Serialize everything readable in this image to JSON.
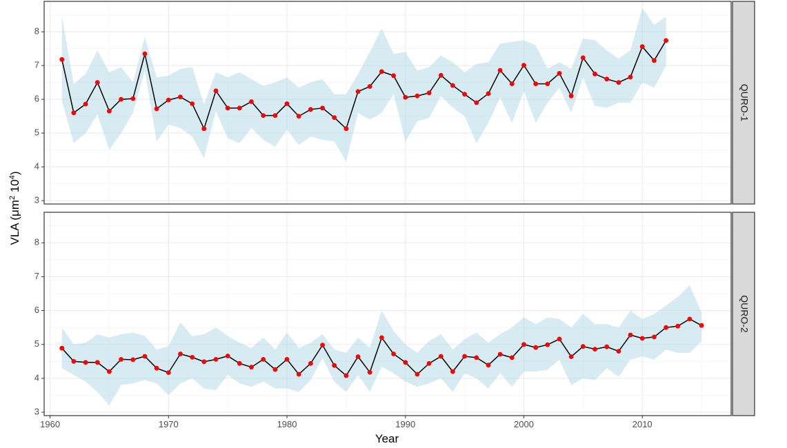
{
  "chart_data": {
    "type": "line",
    "xlabel": "Year",
    "ylabel": "VLA (μm² 10⁴)",
    "ylabel_parts": {
      "base": "VLA (μm",
      "exp1": "2",
      "mid": " 10",
      "exp2": "4",
      "end": ")"
    },
    "xlim": [
      1959.5,
      2017.5
    ],
    "ylim": [
      2.9,
      8.9
    ],
    "x_ticks": [
      1960,
      1970,
      1980,
      1990,
      2000,
      2010
    ],
    "x_tick_labels": [
      "1960",
      "1970",
      "1980",
      "1990",
      "2000",
      "2010"
    ],
    "y_ticks": [
      3,
      4,
      5,
      6,
      7,
      8
    ],
    "y_tick_labels": [
      "3",
      "4",
      "5",
      "6",
      "7",
      "8"
    ],
    "grid": true,
    "colors": {
      "line": "#000000",
      "point": "#ff0000",
      "ribbon": "#add8e6",
      "strip": "#d9d9d9"
    },
    "panels": [
      {
        "strip_label": "QURO-1",
        "x": [
          1961,
          1962,
          1963,
          1964,
          1965,
          1966,
          1967,
          1968,
          1969,
          1970,
          1971,
          1972,
          1973,
          1974,
          1975,
          1976,
          1977,
          1978,
          1979,
          1980,
          1981,
          1982,
          1983,
          1984,
          1985,
          1986,
          1987,
          1988,
          1989,
          1990,
          1991,
          1992,
          1993,
          1994,
          1995,
          1996,
          1997,
          1998,
          1999,
          2000,
          2001,
          2002,
          2003,
          2004,
          2005,
          2006,
          2007,
          2008,
          2009,
          2010,
          2011,
          2012
        ],
        "y": [
          7.18,
          5.6,
          5.86,
          6.5,
          5.65,
          6.0,
          6.02,
          7.35,
          5.72,
          5.98,
          6.07,
          5.87,
          5.13,
          6.25,
          5.74,
          5.74,
          5.93,
          5.52,
          5.52,
          5.87,
          5.5,
          5.7,
          5.74,
          5.46,
          5.13,
          6.23,
          6.38,
          6.82,
          6.7,
          6.06,
          6.1,
          6.19,
          6.71,
          6.41,
          6.15,
          5.9,
          6.17,
          6.86,
          6.46,
          7.01,
          6.46,
          6.46,
          6.77,
          6.1,
          7.23,
          6.75,
          6.6,
          6.5,
          6.66,
          7.56,
          7.15,
          7.74
        ],
        "upper": [
          8.45,
          6.45,
          6.75,
          7.45,
          6.8,
          6.95,
          6.5,
          7.85,
          6.65,
          6.7,
          6.9,
          6.95,
          5.85,
          6.8,
          6.65,
          6.8,
          6.6,
          6.4,
          6.5,
          6.65,
          6.35,
          6.5,
          6.6,
          6.15,
          6.15,
          6.75,
          7.4,
          8.1,
          7.35,
          7.4,
          6.85,
          6.95,
          7.3,
          7.1,
          6.8,
          7.05,
          7.1,
          7.65,
          7.7,
          7.75,
          7.6,
          6.9,
          7.1,
          6.9,
          7.8,
          7.75,
          7.45,
          7.2,
          7.45,
          8.7,
          8.2,
          8.45
        ],
        "lower": [
          5.95,
          4.7,
          5.0,
          5.55,
          4.5,
          5.0,
          5.6,
          6.85,
          4.75,
          5.25,
          5.15,
          4.9,
          4.25,
          5.65,
          4.85,
          4.7,
          5.15,
          4.8,
          4.6,
          5.1,
          4.65,
          4.9,
          4.8,
          4.75,
          4.15,
          5.6,
          5.4,
          5.6,
          6.15,
          4.75,
          5.35,
          5.45,
          6.1,
          5.75,
          5.5,
          4.7,
          5.3,
          6.05,
          5.3,
          6.25,
          5.3,
          5.9,
          6.35,
          5.6,
          6.65,
          5.8,
          5.75,
          5.9,
          5.9,
          6.5,
          6.35,
          7.0
        ]
      },
      {
        "strip_label": "QURO-2",
        "x": [
          1961,
          1962,
          1963,
          1964,
          1965,
          1966,
          1967,
          1968,
          1969,
          1970,
          1971,
          1972,
          1973,
          1974,
          1975,
          1976,
          1977,
          1978,
          1979,
          1980,
          1981,
          1982,
          1983,
          1984,
          1985,
          1986,
          1987,
          1988,
          1989,
          1990,
          1991,
          1992,
          1993,
          1994,
          1995,
          1996,
          1997,
          1998,
          1999,
          2000,
          2001,
          2002,
          2003,
          2004,
          2005,
          2006,
          2007,
          2008,
          2009,
          2010,
          2011,
          2012,
          2013,
          2014,
          2015
        ],
        "y": [
          4.89,
          4.5,
          4.47,
          4.47,
          4.2,
          4.56,
          4.55,
          4.65,
          4.3,
          4.17,
          4.72,
          4.62,
          4.49,
          4.56,
          4.66,
          4.44,
          4.33,
          4.56,
          4.26,
          4.56,
          4.12,
          4.44,
          4.98,
          4.38,
          4.08,
          4.64,
          4.18,
          5.2,
          4.72,
          4.47,
          4.12,
          4.44,
          4.65,
          4.2,
          4.65,
          4.61,
          4.39,
          4.71,
          4.61,
          5.0,
          4.91,
          4.99,
          5.16,
          4.64,
          4.94,
          4.86,
          4.93,
          4.8,
          5.28,
          5.18,
          5.22,
          5.5,
          5.54,
          5.75,
          5.56
        ],
        "upper": [
          5.5,
          5.0,
          5.05,
          5.3,
          5.2,
          5.3,
          5.35,
          5.25,
          4.85,
          4.95,
          5.65,
          5.25,
          5.3,
          5.5,
          5.25,
          5.05,
          4.9,
          5.2,
          4.85,
          5.35,
          4.9,
          5.05,
          5.3,
          4.85,
          4.75,
          5.2,
          4.9,
          6.0,
          5.4,
          5.0,
          4.75,
          5.1,
          5.3,
          4.85,
          5.15,
          5.35,
          5.05,
          5.3,
          5.5,
          5.8,
          5.6,
          5.8,
          5.75,
          5.5,
          5.9,
          5.6,
          5.6,
          5.5,
          6.0,
          5.75,
          5.9,
          6.15,
          6.4,
          6.75,
          5.95
        ],
        "lower": [
          4.3,
          4.1,
          3.9,
          3.6,
          3.2,
          3.8,
          3.85,
          3.95,
          3.85,
          3.5,
          3.85,
          4.0,
          3.7,
          3.65,
          4.1,
          3.85,
          3.75,
          3.9,
          3.7,
          3.7,
          3.6,
          3.95,
          4.6,
          3.9,
          3.6,
          4.1,
          3.6,
          4.35,
          4.15,
          3.9,
          3.75,
          3.85,
          4.0,
          3.6,
          4.15,
          4.0,
          3.7,
          4.15,
          3.75,
          4.2,
          4.2,
          4.25,
          4.55,
          3.8,
          4.0,
          3.95,
          4.3,
          4.05,
          4.55,
          4.65,
          4.55,
          4.85,
          4.75,
          4.75,
          5.1
        ]
      }
    ]
  }
}
